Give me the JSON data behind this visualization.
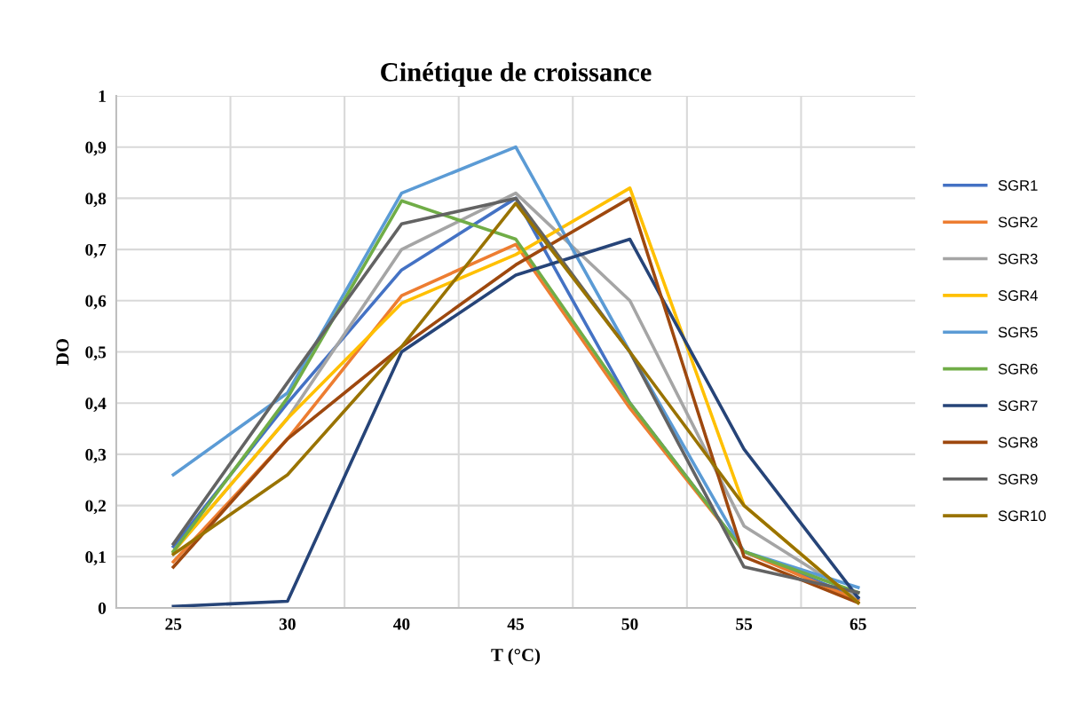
{
  "chart_data": {
    "type": "line",
    "title": "Cinétique de croissance",
    "xlabel": "T (°C)",
    "ylabel": "DO",
    "categories": [
      "25",
      "30",
      "40",
      "45",
      "50",
      "55",
      "65"
    ],
    "series": [
      {
        "name": "SGR1",
        "color": "#4472c4",
        "values": [
          0.12,
          0.4,
          0.66,
          0.8,
          0.4,
          0.11,
          0.02
        ]
      },
      {
        "name": "SGR2",
        "color": "#ed7d31",
        "values": [
          0.09,
          0.33,
          0.61,
          0.71,
          0.39,
          0.11,
          0.015
        ]
      },
      {
        "name": "SGR3",
        "color": "#a5a5a5",
        "values": [
          0.11,
          0.37,
          0.7,
          0.81,
          0.6,
          0.16,
          0.02
        ]
      },
      {
        "name": "SGR4",
        "color": "#ffc000",
        "values": [
          0.11,
          0.37,
          0.595,
          0.69,
          0.82,
          0.2,
          0.01
        ]
      },
      {
        "name": "SGR5",
        "color": "#5b9bd5",
        "values": [
          0.26,
          0.42,
          0.81,
          0.9,
          0.5,
          0.11,
          0.04
        ]
      },
      {
        "name": "SGR6",
        "color": "#70ad47",
        "values": [
          0.11,
          0.41,
          0.795,
          0.72,
          0.4,
          0.11,
          0.03
        ]
      },
      {
        "name": "SGR7",
        "color": "#264478",
        "values": [
          0.003,
          0.013,
          0.5,
          0.65,
          0.72,
          0.31,
          0.02
        ]
      },
      {
        "name": "SGR8",
        "color": "#9e480e",
        "values": [
          0.08,
          0.33,
          0.51,
          0.67,
          0.8,
          0.1,
          0.01
        ]
      },
      {
        "name": "SGR9",
        "color": "#636363",
        "values": [
          0.125,
          0.44,
          0.75,
          0.8,
          0.5,
          0.08,
          0.03
        ]
      },
      {
        "name": "SGR10",
        "color": "#997300",
        "values": [
          0.105,
          0.26,
          0.51,
          0.79,
          0.5,
          0.2,
          0.01
        ]
      }
    ],
    "ylim": [
      0,
      1
    ],
    "yticks": [
      0,
      {
        "value": 0.1,
        "label": "0,1"
      },
      {
        "value": 0.2,
        "label": "0,2"
      },
      {
        "value": 0.3,
        "label": "0,3"
      },
      {
        "value": 0.4,
        "label": "0,4"
      },
      {
        "value": 0.5,
        "label": "0,5"
      },
      {
        "value": 0.6,
        "label": "0,6"
      },
      {
        "value": 0.7,
        "label": "0,7"
      },
      {
        "value": 0.8,
        "label": "0,8"
      },
      {
        "value": 0.9,
        "label": "0,9"
      },
      1
    ],
    "grid": true,
    "legend": "right",
    "marker": "none",
    "line_style": "solid"
  }
}
